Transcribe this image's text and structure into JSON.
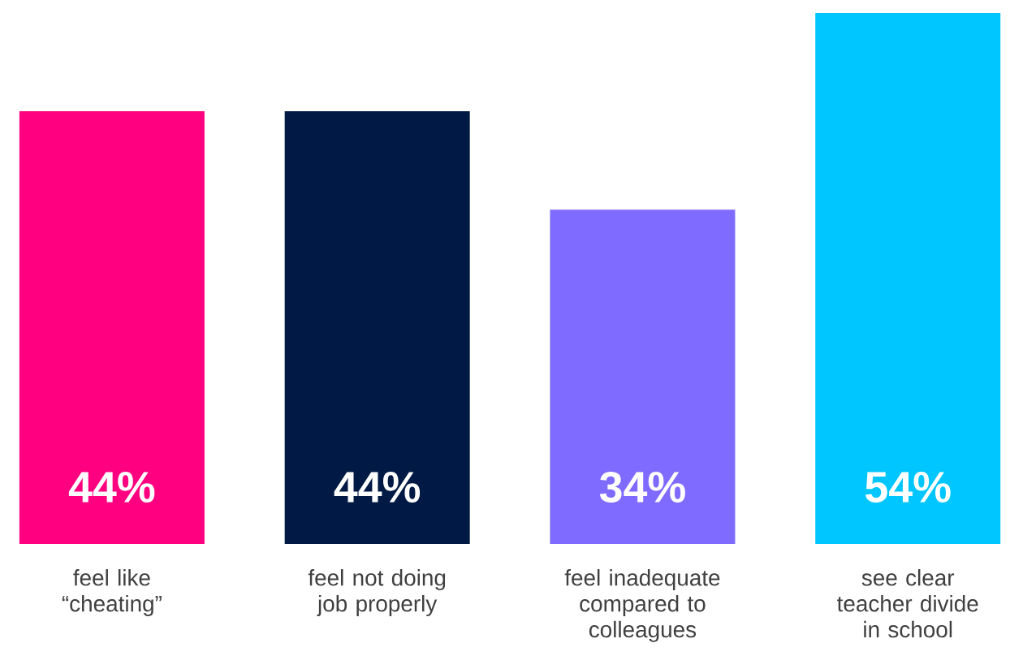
{
  "chart_data": {
    "type": "bar",
    "categories": [
      "feel like “cheating”",
      "feel not doing job properly",
      "feel inadequate compared to colleagues",
      "see clear teacher divide in school"
    ],
    "values": [
      44,
      44,
      34,
      54
    ],
    "colors": [
      "#ff0080",
      "#001a45",
      "#7f6bff",
      "#00c6ff"
    ],
    "value_labels": [
      "44%",
      "44%",
      "34%",
      "54%"
    ]
  }
}
